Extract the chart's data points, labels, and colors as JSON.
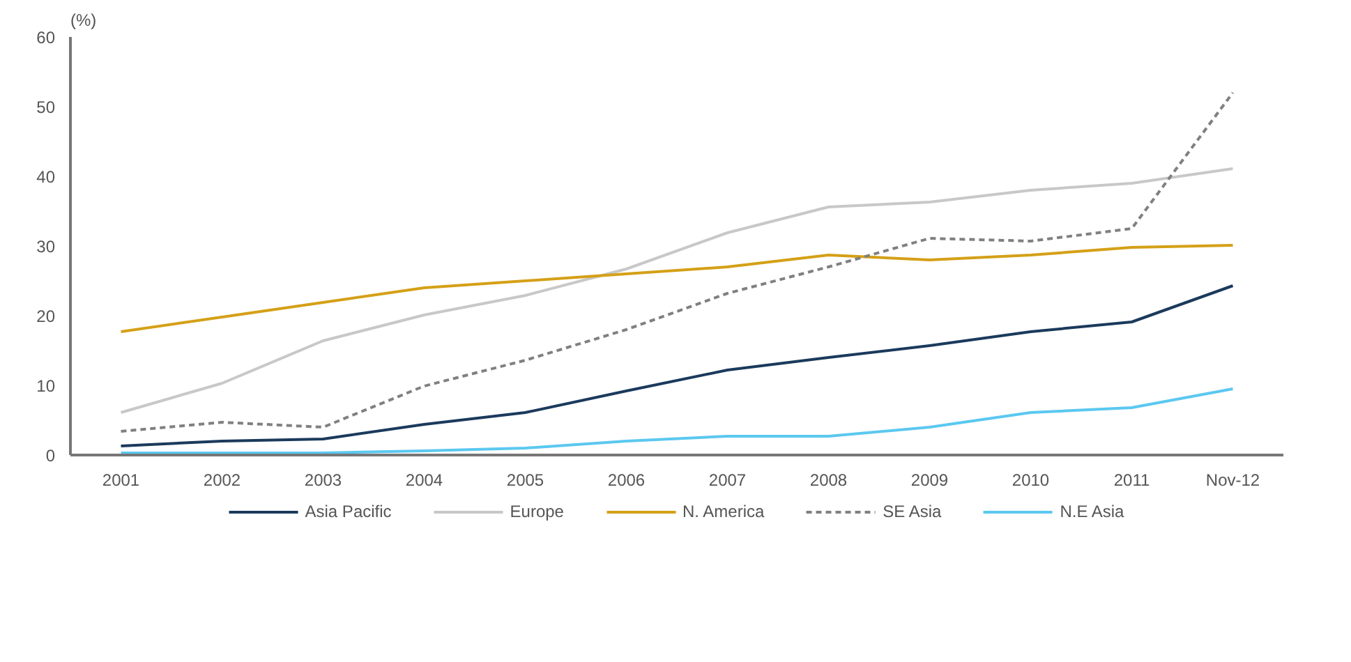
{
  "chart_data": {
    "type": "line",
    "ylabel": "(%)",
    "categories": [
      "2001",
      "2002",
      "2003",
      "2004",
      "2005",
      "2006",
      "2007",
      "2008",
      "2009",
      "2010",
      "2011",
      "Nov-12"
    ],
    "series": [
      {
        "name": "Asia Pacific",
        "color": "#1b3a5c",
        "values": [
          1.3,
          2.0,
          2.3,
          4.4,
          6.1,
          9.2,
          12.2,
          14.0,
          15.7,
          17.7,
          19.1,
          24.3
        ]
      },
      {
        "name": "Europe",
        "color": "#c8c8c8",
        "values": [
          6.1,
          10.3,
          16.4,
          20.1,
          22.9,
          26.7,
          31.9,
          35.6,
          36.3,
          38.0,
          39.0,
          41.1
        ]
      },
      {
        "name": "N. America",
        "color": "#d4a017",
        "values": [
          17.7,
          19.8,
          21.9,
          24.0,
          25.0,
          26.0,
          27.0,
          28.7,
          28.0,
          28.7,
          29.8,
          30.1
        ]
      },
      {
        "name": "SE Asia",
        "color": "#808080",
        "line_style": "dashed",
        "values": [
          3.4,
          4.7,
          4.0,
          9.9,
          13.6,
          18.0,
          23.2,
          27.0,
          31.1,
          30.7,
          32.5,
          52.0
        ]
      },
      {
        "name": "N.E Asia",
        "color": "#5bc8f0",
        "values": [
          0.3,
          0.3,
          0.3,
          0.6,
          1.0,
          2.0,
          2.7,
          2.7,
          4.0,
          6.1,
          6.8,
          9.5
        ]
      }
    ],
    "ylim": [
      0,
      60
    ],
    "yticks": [
      0,
      10,
      20,
      30,
      40,
      50,
      60
    ],
    "grid": false,
    "legend": "bottom",
    "marker": "none"
  }
}
